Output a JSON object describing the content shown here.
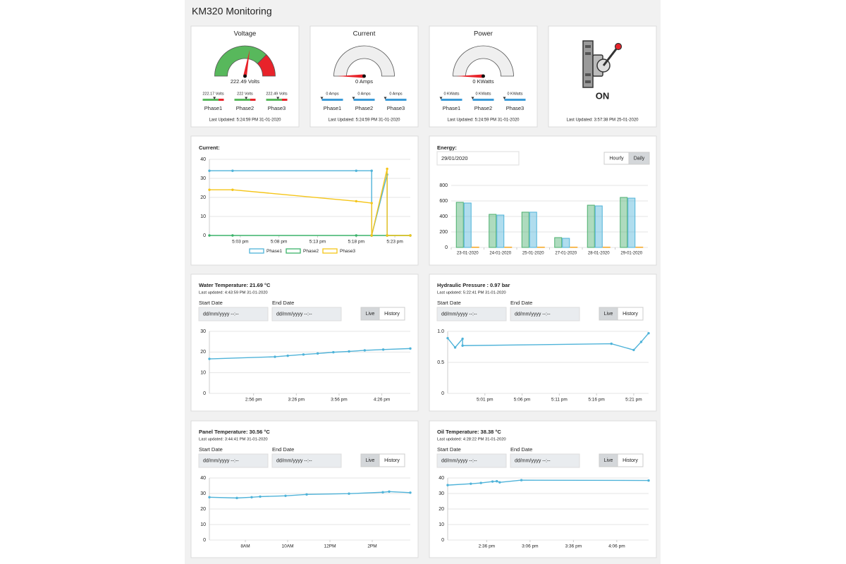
{
  "title": "KM320 Monitoring",
  "gauges": [
    {
      "title": "Voltage",
      "value": 222.49,
      "value_label": "222.49 Volts",
      "ylim": [
        0,
        400
      ],
      "zones": [
        {
          "to": 300,
          "color": "#58b85c"
        },
        {
          "to": 400,
          "color": "#e8232a"
        }
      ],
      "phases": [
        {
          "name": "Phase1",
          "value": 222.17,
          "value_label": "222.17 Volts"
        },
        {
          "name": "Phase2",
          "value": 222,
          "value_label": "222 Volts"
        },
        {
          "name": "Phase3",
          "value": 222.49,
          "value_label": "222.49 Volts"
        }
      ],
      "updated": "Last Updated: 5:24:59 PM 31-01-2020"
    },
    {
      "title": "Current",
      "value": 0,
      "value_label": "0 Amps",
      "ylim": [
        0,
        100
      ],
      "zones": [
        {
          "to": 100,
          "color": "#efefef"
        }
      ],
      "bar_color": "#3b9bd8",
      "phases": [
        {
          "name": "Phase1",
          "value": 0,
          "value_label": "0 Amps"
        },
        {
          "name": "Phase2",
          "value": 0,
          "value_label": "0 Amps"
        },
        {
          "name": "Phase3",
          "value": 0,
          "value_label": "0 Amps"
        }
      ],
      "updated": "Last Updated: 5:24:59 PM 31-01-2020"
    },
    {
      "title": "Power",
      "value": 0,
      "value_label": "0 KWatts",
      "ylim": [
        0,
        100
      ],
      "zones": [
        {
          "to": 100,
          "color": "#efefef"
        }
      ],
      "bar_color": "#3b9bd8",
      "phases": [
        {
          "name": "Phase1",
          "value": 0,
          "value_label": "0 KWatts"
        },
        {
          "name": "Phase2",
          "value": 0,
          "value_label": "0 KWatts"
        },
        {
          "name": "Phase3",
          "value": 0,
          "value_label": "0 KWatts"
        }
      ],
      "updated": "Last Updated: 5:24:59 PM 31-01-2020"
    }
  ],
  "switch": {
    "state": "ON",
    "updated": "Last Updated: 3:57:38 PM 25-01-2020"
  },
  "controls": {
    "start_label": "Start Date",
    "end_label": "End Date",
    "placeholder": "dd/mm/yyyy --:--",
    "buttons": [
      "Live",
      "History"
    ]
  },
  "chart_data": [
    {
      "type": "line",
      "title": "Current:",
      "x": [
        "4:59 pm",
        "5:02 pm",
        "5:18 pm",
        "5:20 pm",
        "5:20 pm",
        "5:22 pm",
        "5:22 pm",
        "5:25 pm"
      ],
      "series": [
        {
          "name": "Phase1",
          "color": "#4fb3d9",
          "values": [
            34,
            34,
            34,
            34,
            0,
            32,
            0,
            0
          ]
        },
        {
          "name": "Phase2",
          "color": "#3bb36a",
          "values": [
            0,
            0,
            0,
            0,
            0,
            0,
            0,
            0
          ]
        },
        {
          "name": "Phase3",
          "color": "#f5c518",
          "values": [
            24,
            24,
            18,
            17,
            0,
            35,
            0,
            0
          ]
        }
      ],
      "xlim": [
        "4:59 pm",
        "5:25 pm"
      ],
      "xticks": [
        "5:03 pm",
        "5:08 pm",
        "5:13 pm",
        "5:18 pm",
        "5:23 pm"
      ],
      "ylim": [
        0,
        40
      ],
      "yticks": [
        0,
        10,
        20,
        30,
        40
      ],
      "grid": true,
      "legend": "bottom"
    },
    {
      "type": "bar",
      "title": "Energy:",
      "date": "29/01/2020",
      "buttons": [
        "Hourly",
        "Daily"
      ],
      "categories": [
        "23-01-2020",
        "24-01-2020",
        "25-01-2020",
        "27-01-2020",
        "28-01-2020",
        "29-01-2020"
      ],
      "series": [
        {
          "color": "#4caf6e",
          "values": [
            582,
            427,
            455,
            127,
            545,
            645
          ]
        },
        {
          "color": "#4fb3d9",
          "values": [
            573,
            418,
            455,
            118,
            536,
            636
          ]
        },
        {
          "color": "#f5a623",
          "values": [
            5,
            5,
            5,
            5,
            5,
            5
          ]
        }
      ],
      "ylim": [
        0,
        800
      ],
      "yticks": [
        0,
        200,
        400,
        600,
        800
      ],
      "grid": true
    },
    {
      "type": "line",
      "title": "Water Temperature: 21.69 °C",
      "subtitle": "Last updated: 4:43:59 PM 31-01-2020",
      "color": "#4fb3d9",
      "x": [
        "2:25 pm",
        "3:11 pm",
        "3:20 pm",
        "3:31 pm",
        "3:41 pm",
        "3:52 pm",
        "4:03 pm",
        "4:14 pm",
        "4:27 pm",
        "4:46 pm"
      ],
      "values": [
        16.7,
        17.7,
        18.2,
        18.8,
        19.3,
        19.9,
        20.3,
        20.8,
        21.2,
        21.69
      ],
      "xlim": [
        "2:25 pm",
        "4:46 pm"
      ],
      "xticks": [
        "2:56 pm",
        "3:26 pm",
        "3:56 pm",
        "4:26 pm"
      ],
      "ylim": [
        0,
        30
      ],
      "yticks": [
        0,
        10,
        20,
        30
      ],
      "grid": true
    },
    {
      "type": "line",
      "title": "Hydraulic Pressure : 0.97 bar",
      "subtitle": "Last updated: 5:22:41 PM 31-01-2020",
      "color": "#4fb3d9",
      "x": [
        "4:56 pm",
        "4:57 pm",
        "4:58 pm",
        "4:58 pm",
        "5:18 pm",
        "5:21 pm",
        "5:22 pm",
        "5:23 pm"
      ],
      "values": [
        0.89,
        0.74,
        0.88,
        0.77,
        0.8,
        0.7,
        0.83,
        0.97
      ],
      "xlim": [
        "4:56 pm",
        "5:23 pm"
      ],
      "xticks": [
        "5:01 pm",
        "5:06 pm",
        "5:11 pm",
        "5:16 pm",
        "5:21 pm"
      ],
      "ylim": [
        0,
        1
      ],
      "yticks": [
        0,
        0.5,
        {
          "value": 1,
          "label": "1.0"
        }
      ],
      "grid": true
    },
    {
      "type": "line",
      "title": "Panel Temperature: 30.56 °C",
      "subtitle": "Last updated: 3:44:41 PM 31-01-2020",
      "color": "#4fb3d9",
      "x": [
        6.3,
        7.6,
        8.3,
        8.7,
        9.9,
        10.9,
        12.9,
        14.5,
        14.8,
        15.8
      ],
      "values": [
        27.6,
        27.1,
        27.6,
        28,
        28.5,
        29.4,
        29.9,
        30.8,
        31.2,
        30.56
      ],
      "xlim": [
        6.3,
        15.8
      ],
      "xticks": [
        {
          "value": 8,
          "label": "8AM"
        },
        {
          "value": 10,
          "label": "10AM"
        },
        {
          "value": 12,
          "label": "12PM"
        },
        {
          "value": 14,
          "label": "2PM"
        }
      ],
      "ylim": [
        0,
        40
      ],
      "yticks": [
        0,
        10,
        20,
        30,
        40
      ],
      "grid": true
    },
    {
      "type": "line",
      "title": "Oil Temperature: 38.38 °C",
      "subtitle": "Last updated: 4:28:22 PM 31-01-2020",
      "color": "#4fb3d9",
      "x": [
        "2:09 pm",
        "2:25 pm",
        "2:32 pm",
        "2:40 pm",
        "2:43 pm",
        "2:45 pm",
        "3:00 pm",
        "4:28 pm"
      ],
      "values": [
        35.4,
        36.3,
        36.8,
        37.7,
        37.9,
        37.2,
        38.6,
        38.38
      ],
      "xlim": [
        "2:09 pm",
        "4:28 pm"
      ],
      "xticks": [
        "2:36 pm",
        "3:06 pm",
        "3:36 pm",
        "4:06 pm"
      ],
      "ylim": [
        0,
        40
      ],
      "yticks": [
        0,
        10,
        20,
        30,
        40
      ],
      "grid": true
    }
  ]
}
